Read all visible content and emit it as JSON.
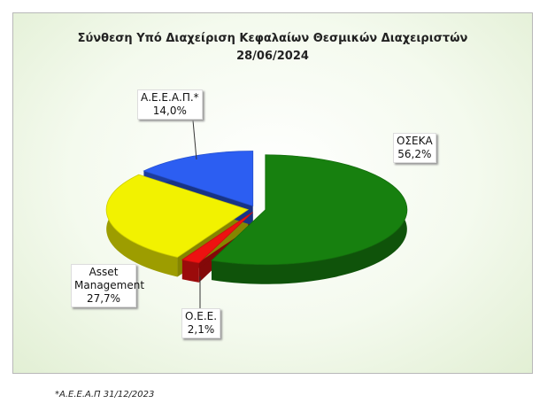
{
  "chart_data": {
    "type": "pie",
    "title": "Σύνθεση Υπό Διαχείριση Κεφαλαίων Θεσμικών Διαχειριστών",
    "subtitle": "28/06/2024",
    "categories": [
      "ΟΣΕΚΑ",
      "Ο.Ε.Ε.",
      "Asset Management",
      "Α.Ε.Ε.Α.Π.*"
    ],
    "values": [
      56.2,
      2.1,
      27.7,
      14.0
    ],
    "value_labels": [
      "56,2%",
      "2,1%",
      "27,7%",
      "14,0%"
    ],
    "colors": [
      "#17800f",
      "#ee1111",
      "#f2f200",
      "#2c5ef2"
    ]
  },
  "footnote": "*Α.Ε.Ε.Α.Π 31/12/2023"
}
